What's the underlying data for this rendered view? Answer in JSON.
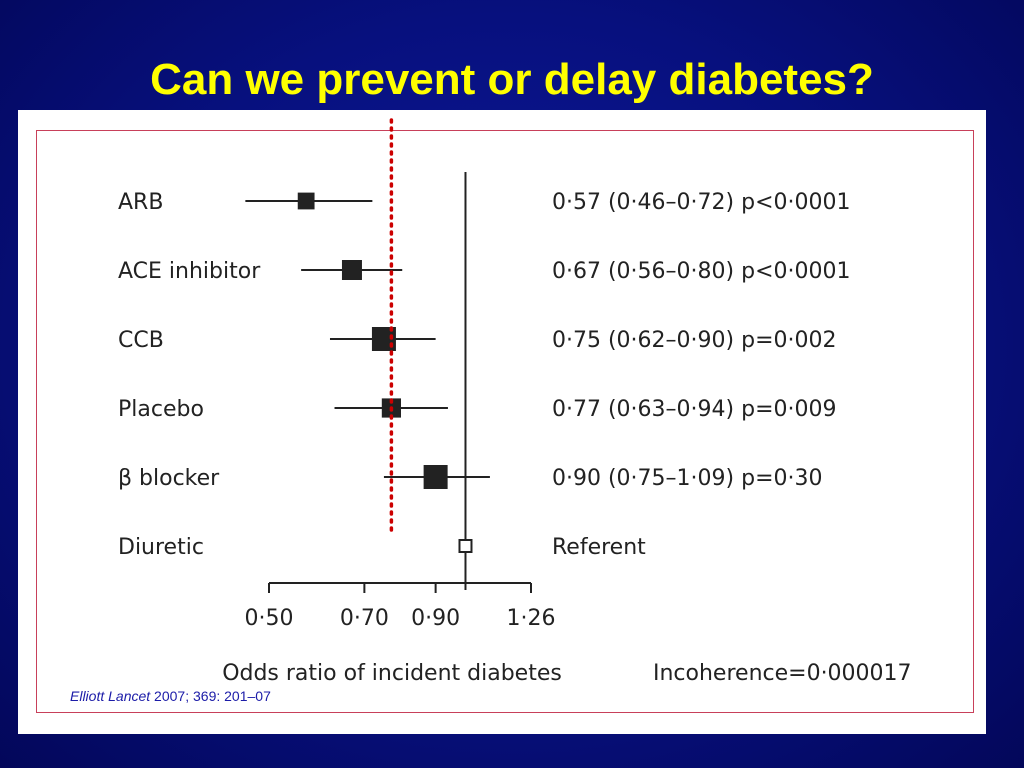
{
  "slide": {
    "title": "Can we prevent or delay diabetes?"
  },
  "citation": {
    "author_journal": "Elliott Lancet",
    "year": " 2007",
    "rest": "; 369: 201–07"
  },
  "chart_data": {
    "type": "forest",
    "xlabel": "Odds ratio of incident diabetes",
    "xticks": [
      "0·50",
      "0·70",
      "0·90",
      "1·26"
    ],
    "reference_line_x": 1.0,
    "highlight_line_x": 0.77,
    "highlight_line_color": "#cc0000",
    "incoherence_label": "Incoherence=0·000017",
    "rows": [
      {
        "label": "ARB",
        "or": 0.57,
        "lo": 0.46,
        "hi": 0.72,
        "text": "0·57 (0·46–0·72) p<0·0001",
        "weight": 0.55
      },
      {
        "label": "ACE inhibitor",
        "or": 0.67,
        "lo": 0.56,
        "hi": 0.8,
        "text": "0·67 (0·56–0·80) p<0·0001",
        "weight": 0.75
      },
      {
        "label": "CCB",
        "or": 0.75,
        "lo": 0.62,
        "hi": 0.9,
        "text": "0·75 (0·62–0·90) p=0·002",
        "weight": 1.0
      },
      {
        "label": "Placebo",
        "or": 0.77,
        "lo": 0.63,
        "hi": 0.94,
        "text": "0·77 (0·63–0·94) p=0·009",
        "weight": 0.7
      },
      {
        "label": "β blocker",
        "or": 0.9,
        "lo": 0.75,
        "hi": 1.09,
        "text": "0·90 (0·75–1·09)  p=0·30",
        "weight": 1.0
      },
      {
        "label": "Diuretic",
        "or": 1.0,
        "lo": null,
        "hi": null,
        "text": "Referent",
        "weight": 0.45,
        "reference": true
      }
    ]
  }
}
